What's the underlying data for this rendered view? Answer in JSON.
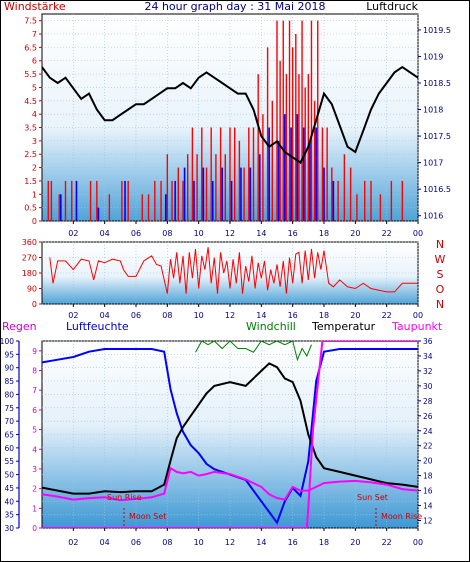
{
  "chart_data": [
    {
      "type": "line",
      "title": "24 hour graph day : 31 Mai 2018",
      "left_label": "Windstärke",
      "right_label": "Luftdruck",
      "yleft_ticks": [
        "0",
        "0.5",
        "1",
        "1.5",
        "2",
        "2.5",
        "3",
        "3.5",
        "4",
        "4.5",
        "5",
        "5.5",
        "6",
        "6.5",
        "7",
        "7.5"
      ],
      "yright_ticks": [
        "1016",
        "1016.5",
        "1017",
        "1017.5",
        "1018",
        "1018.5",
        "1019",
        "1019.5"
      ],
      "x_ticks": [
        "02",
        "04",
        "06",
        "08",
        "10",
        "12",
        "14",
        "16",
        "18",
        "20",
        "22",
        "00"
      ],
      "ylim_left": [
        0,
        7.75
      ],
      "ylim_right": [
        1015.9,
        1019.8
      ],
      "pressure_series": {
        "name": "Luftdruck",
        "x": [
          0,
          0.5,
          1,
          1.5,
          2,
          2.5,
          3,
          3.5,
          4,
          4.5,
          5,
          5.5,
          6,
          6.5,
          7,
          7.5,
          8,
          8.5,
          9,
          9.5,
          10,
          10.5,
          11,
          11.5,
          12,
          12.5,
          13,
          13.5,
          14,
          14.5,
          15,
          15.5,
          16,
          16.5,
          17,
          17.5,
          18,
          18.5,
          19,
          19.5,
          20,
          20.5,
          21,
          21.5,
          22,
          22.5,
          23,
          23.5,
          24
        ],
        "values": [
          1018.8,
          1018.6,
          1018.5,
          1018.6,
          1018.4,
          1018.2,
          1018.3,
          1018.0,
          1017.8,
          1017.8,
          1017.9,
          1018.0,
          1018.1,
          1018.1,
          1018.2,
          1018.3,
          1018.4,
          1018.4,
          1018.5,
          1018.4,
          1018.6,
          1018.7,
          1018.6,
          1018.5,
          1018.4,
          1018.3,
          1018.3,
          1018.0,
          1017.5,
          1017.3,
          1017.4,
          1017.2,
          1017.1,
          1017.0,
          1017.3,
          1017.8,
          1018.3,
          1018.1,
          1017.7,
          1017.3,
          1017.2,
          1017.6,
          1018.0,
          1018.3,
          1018.5,
          1018.7,
          1018.8,
          1018.7,
          1018.6
        ]
      },
      "gust_series": {
        "name": "Böen",
        "x": [
          0.4,
          0.6,
          1.1,
          1.5,
          1.9,
          3.1,
          3.5,
          4.3,
          5.1,
          5.5,
          6.4,
          6.8,
          7.2,
          7.6,
          8.0,
          8.3,
          8.7,
          9.0,
          9.3,
          9.6,
          9.9,
          10.2,
          10.5,
          10.8,
          11.1,
          11.4,
          11.7,
          12.0,
          12.3,
          12.6,
          12.9,
          13.2,
          13.5,
          13.8,
          14.1,
          14.4,
          14.7,
          15.0,
          15.2,
          15.4,
          15.6,
          15.8,
          16.0,
          16.2,
          16.4,
          16.6,
          16.8,
          17.0,
          17.2,
          17.4,
          17.6,
          17.9,
          18.2,
          18.5,
          18.9,
          19.3,
          19.7,
          20.1,
          20.6,
          21.0,
          21.6,
          22.3,
          23.0
        ],
        "values": [
          1.5,
          1.5,
          1.0,
          1.5,
          1.5,
          1.5,
          1.5,
          1.0,
          1.5,
          1.5,
          1.0,
          1.0,
          1.5,
          1.5,
          2.5,
          1.5,
          2.0,
          1.5,
          2.5,
          3.5,
          2.5,
          3.5,
          2.0,
          3.5,
          2.5,
          3.5,
          2.5,
          3.5,
          3.5,
          3.0,
          2.0,
          3.5,
          3.5,
          5.5,
          4.0,
          6.5,
          4.5,
          7.5,
          6.0,
          7.5,
          5.5,
          7.5,
          6.5,
          7.0,
          5.5,
          7.5,
          5.0,
          5.5,
          7.5,
          4.5,
          7.5,
          3.5,
          3.5,
          2.0,
          1.5,
          2.5,
          2.0,
          1.0,
          1.5,
          1.5,
          1.0,
          1.5,
          1.5
        ]
      },
      "wind_series": {
        "name": "Wind",
        "x": [
          1.2,
          2.2,
          3.6,
          5.3,
          7.9,
          8.5,
          9.1,
          9.7,
          10.3,
          10.9,
          11.5,
          12.1,
          12.7,
          13.3,
          13.9,
          14.5,
          15.1,
          15.5,
          15.9,
          16.3,
          16.7,
          17.1,
          17.5,
          18.0,
          18.6
        ],
        "values": [
          1.0,
          1.5,
          0.5,
          1.5,
          1.0,
          1.5,
          2.0,
          1.5,
          2.0,
          1.5,
          2.0,
          1.5,
          2.0,
          2.0,
          2.5,
          3.5,
          3.0,
          4.0,
          3.5,
          4.0,
          3.5,
          3.0,
          3.5,
          2.0,
          1.5
        ]
      }
    },
    {
      "type": "line",
      "title": "",
      "y_ticks": [
        "360",
        "270",
        "180",
        "90",
        "0"
      ],
      "direction_labels": [
        "N",
        "W",
        "S",
        "O",
        "N"
      ],
      "x_ticks": [
        "02",
        "04",
        "06",
        "08",
        "10",
        "12",
        "14",
        "16",
        "18",
        "20",
        "22",
        "00"
      ],
      "ylim": [
        0,
        360
      ],
      "series": [
        {
          "name": "Windrichtung",
          "x": [
            0.5,
            0.7,
            1.0,
            1.5,
            2.0,
            2.5,
            3.0,
            3.3,
            3.6,
            4.0,
            4.5,
            5.0,
            5.2,
            5.5,
            6.0,
            6.5,
            7.0,
            7.3,
            7.6,
            8.0,
            8.2,
            8.4,
            8.6,
            8.8,
            9.0,
            9.2,
            9.4,
            9.6,
            9.8,
            10.0,
            10.2,
            10.4,
            10.6,
            10.8,
            11.0,
            11.2,
            11.4,
            11.6,
            11.8,
            12.0,
            12.2,
            12.4,
            12.6,
            12.8,
            13.0,
            13.2,
            13.4,
            13.6,
            13.8,
            14.0,
            14.2,
            14.4,
            14.6,
            14.8,
            15.0,
            15.2,
            15.4,
            15.6,
            15.8,
            16.0,
            16.2,
            16.4,
            16.6,
            16.8,
            17.0,
            17.2,
            17.4,
            17.6,
            17.8,
            18.0,
            18.3,
            18.6,
            19.0,
            19.5,
            20.0,
            20.5,
            21.0,
            21.5,
            22.0,
            22.5,
            23.0,
            23.5,
            24.0
          ],
          "values": [
            270,
            120,
            250,
            250,
            200,
            260,
            250,
            140,
            250,
            240,
            260,
            250,
            200,
            160,
            160,
            250,
            280,
            230,
            220,
            60,
            260,
            150,
            300,
            120,
            280,
            60,
            300,
            150,
            320,
            90,
            280,
            200,
            330,
            120,
            270,
            60,
            300,
            180,
            250,
            90,
            260,
            120,
            300,
            60,
            220,
            130,
            280,
            90,
            240,
            150,
            250,
            80,
            200,
            120,
            230,
            100,
            250,
            60,
            270,
            120,
            290,
            300,
            120,
            310,
            140,
            320,
            150,
            300,
            200,
            310,
            120,
            100,
            140,
            100,
            90,
            120,
            90,
            80,
            70,
            70,
            120,
            120,
            120
          ]
        }
      ]
    },
    {
      "type": "line",
      "title": "",
      "labels": {
        "regen": "Regen",
        "luftfeuchte": "Luftfeuchte",
        "windchill": "Windchill",
        "temperatur": "Temperatur",
        "taupunkt": "Taupunkt"
      },
      "annotations": [
        "Sun Rise",
        "Moon Set",
        "Sun Set",
        "Moon Rise"
      ],
      "yleft_ticks": [
        "30",
        "35",
        "40",
        "45",
        "50",
        "55",
        "60",
        "65",
        "70",
        "75",
        "80",
        "85",
        "90",
        "95",
        "100"
      ],
      "regen_ticks": [
        "0",
        "1",
        "2",
        "3",
        "4",
        "5",
        "6",
        "7",
        "8",
        "9"
      ],
      "yright_ticks": [
        "12",
        "14",
        "16",
        "18",
        "20",
        "22",
        "24",
        "26",
        "28",
        "30",
        "32",
        "34",
        "36"
      ],
      "x_ticks": [
        "02",
        "04",
        "06",
        "08",
        "10",
        "12",
        "14",
        "16",
        "18",
        "20",
        "22",
        "00"
      ],
      "ylim_left": [
        30,
        100
      ],
      "ylim_right": [
        11,
        36
      ],
      "series": [
        {
          "name": "Luftfeuchte",
          "x": [
            0,
            1,
            2,
            3,
            4,
            5,
            6,
            7,
            7.8,
            8.2,
            8.6,
            9.0,
            9.5,
            10,
            10.5,
            11,
            12,
            13,
            14,
            14.5,
            15,
            15.5,
            16,
            16.5,
            17,
            17.5,
            18,
            19,
            20,
            21,
            22,
            23,
            24
          ],
          "values": [
            92,
            93,
            94,
            96,
            97,
            97,
            97,
            97,
            96,
            82,
            73,
            66,
            61,
            58,
            54,
            52,
            50,
            48,
            40,
            36,
            32,
            40,
            45,
            42,
            55,
            85,
            96,
            97,
            97,
            97,
            97,
            97,
            97
          ]
        },
        {
          "name": "Temperatur",
          "x": [
            0,
            1,
            2,
            3,
            4,
            5,
            6,
            7,
            7.8,
            8.2,
            8.6,
            9.0,
            9.5,
            10,
            10.5,
            11,
            12,
            13,
            14,
            14.5,
            15,
            15.5,
            16,
            16.5,
            17,
            17.5,
            18,
            19,
            20,
            21,
            22,
            23,
            24
          ],
          "values": [
            16.4,
            16.0,
            15.6,
            15.6,
            15.9,
            15.8,
            15.9,
            15.9,
            16.8,
            20,
            23,
            24.5,
            26,
            27.5,
            29,
            30,
            30.5,
            30,
            32,
            33,
            32.5,
            31,
            30.5,
            28,
            23.5,
            20.5,
            19,
            18.5,
            18,
            17.5,
            17,
            16.8,
            16.5
          ]
        },
        {
          "name": "Windchill",
          "x": [
            9.8,
            10.2,
            10.6,
            11,
            11.5,
            12,
            12.5,
            13,
            13.5,
            14,
            14.5,
            15,
            15.5,
            16,
            16.3,
            16.6,
            16.9,
            17.2
          ],
          "values": [
            34.5,
            36,
            35.5,
            36,
            35,
            36,
            35,
            35,
            34.5,
            36,
            35.5,
            36,
            35.5,
            36,
            33.5,
            35,
            34,
            35.5
          ]
        },
        {
          "name": "Taupunkt",
          "x": [
            0,
            1,
            2,
            3,
            4,
            5,
            6,
            6.5,
            7,
            7.8,
            8.2,
            8.6,
            9.0,
            9.5,
            10,
            10.5,
            11,
            12,
            13,
            14,
            14.5,
            15,
            15.5,
            16,
            16.5,
            17,
            17.5,
            18,
            19,
            20,
            21,
            22,
            23,
            24
          ],
          "values": [
            15.5,
            15.2,
            14.8,
            15.0,
            15.1,
            14.7,
            14.9,
            15.0,
            15.1,
            15.6,
            19.0,
            18.5,
            18.3,
            18.5,
            18.0,
            18.2,
            18.5,
            18.2,
            17.5,
            16.5,
            15.5,
            15.0,
            14.8,
            16.5,
            16.0,
            16.0,
            16.5,
            17.0,
            17.2,
            17.3,
            17.1,
            16.8,
            16.2,
            16.0
          ]
        },
        {
          "name": "Regen",
          "x": [
            0,
            16.9,
            17.0,
            17.3,
            17.9,
            18.5,
            24
          ],
          "values": [
            0,
            0,
            1,
            5,
            9.5,
            9.5,
            9.5
          ]
        }
      ]
    }
  ],
  "colors": {
    "pressure": "#000000",
    "gust": "#ff0000",
    "wind": "#0000ff",
    "direction": "#ff0000",
    "humidity": "#0000ff",
    "temperature": "#000000",
    "windchill": "#008000",
    "dewpoint": "#ff00ff",
    "rain": "#ff00ff",
    "axis_left": "#ff0000",
    "axis_right": "#000080"
  }
}
